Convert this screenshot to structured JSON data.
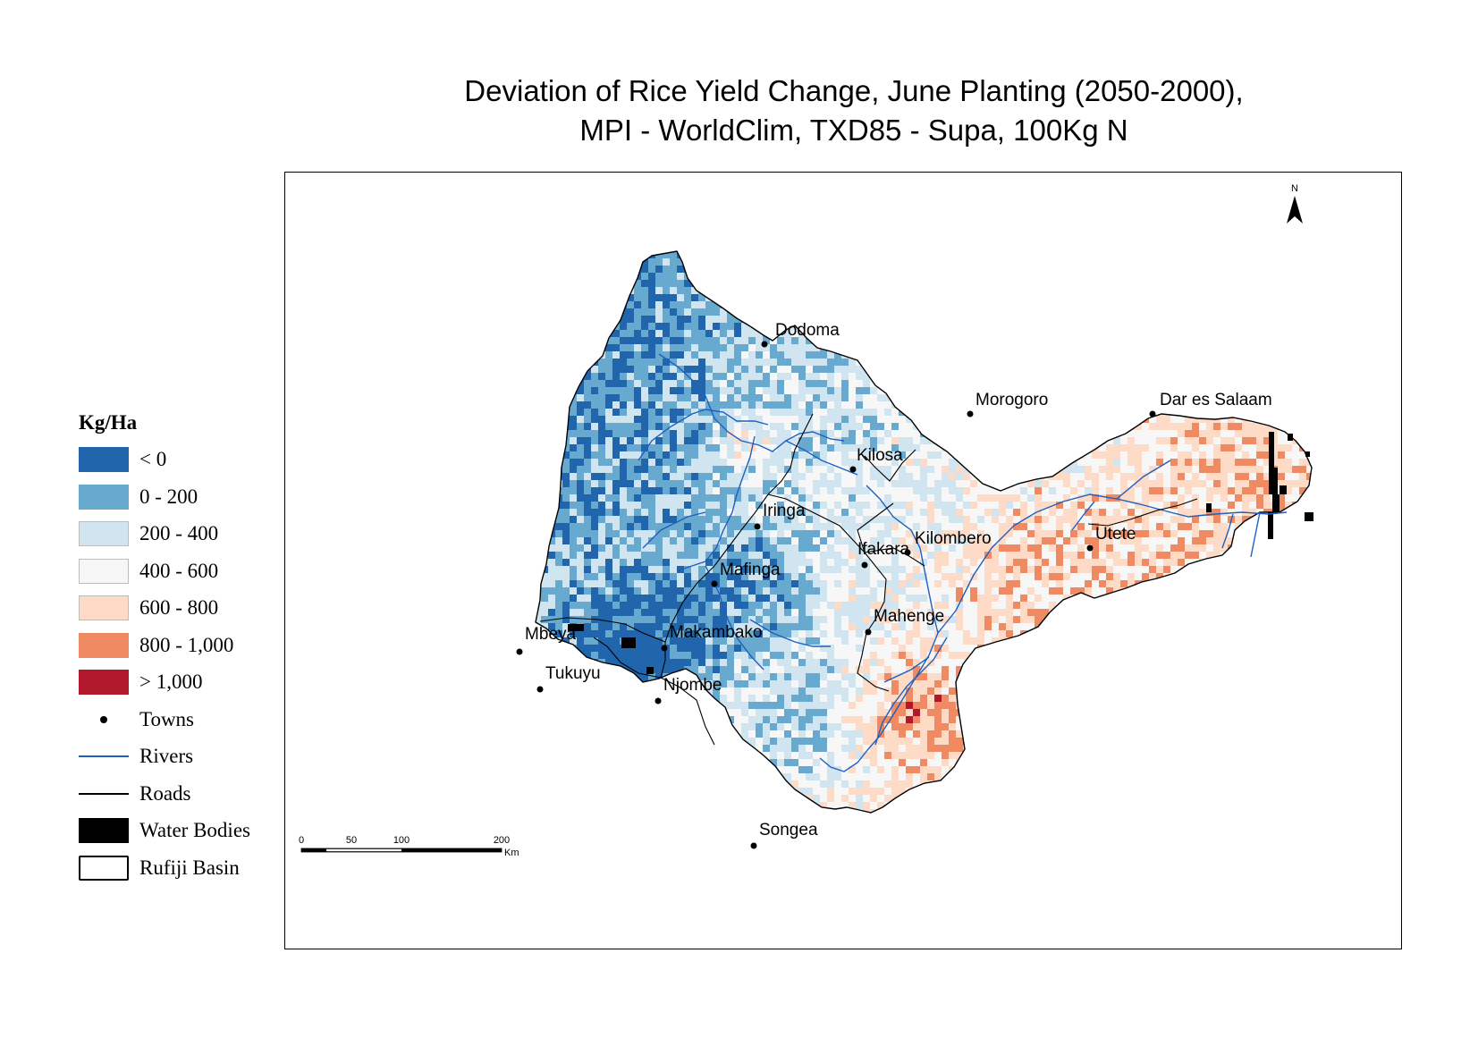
{
  "title": {
    "line1": "Deviation of Rice Yield Change, June Planting (2050-2000),",
    "line2": "MPI - WorldClim, TXD85 - Supa, 100Kg N"
  },
  "legend": {
    "title": "Kg/Ha",
    "items": [
      {
        "label": "< 0",
        "symbol": "swatch",
        "color": "#2166ac"
      },
      {
        "label": "0 - 200",
        "symbol": "swatch",
        "color": "#67a9cf"
      },
      {
        "label": "200 - 400",
        "symbol": "swatch",
        "color": "#d1e5f0"
      },
      {
        "label": "400 - 600",
        "symbol": "swatch",
        "color": "#f7f7f7"
      },
      {
        "label": "600 - 800",
        "symbol": "swatch",
        "color": "#fddbc7"
      },
      {
        "label": "800 - 1,000",
        "symbol": "swatch",
        "color": "#ef8a62"
      },
      {
        "label": "> 1,000",
        "symbol": "swatch",
        "color": "#b2182b"
      },
      {
        "label": "Towns",
        "symbol": "dot",
        "color": "#000000"
      },
      {
        "label": "Rivers",
        "symbol": "line",
        "color": "#1f5fbf"
      },
      {
        "label": "Roads",
        "symbol": "line",
        "color": "#000000"
      },
      {
        "label": "Water Bodies",
        "symbol": "swatch",
        "color": "#000000"
      },
      {
        "label": "Rufiji Basin",
        "symbol": "outline",
        "color": "#000000"
      }
    ]
  },
  "towns": [
    {
      "name": "Dodoma"
    },
    {
      "name": "Morogoro"
    },
    {
      "name": "Dar es Salaam"
    },
    {
      "name": "Kilosa"
    },
    {
      "name": "Iringa"
    },
    {
      "name": "Kilombero"
    },
    {
      "name": "Utete"
    },
    {
      "name": "Ifakara"
    },
    {
      "name": "Mafinga"
    },
    {
      "name": "Mahenge"
    },
    {
      "name": "Mbeya"
    },
    {
      "name": "Makambako"
    },
    {
      "name": "Tukuyu"
    },
    {
      "name": "Njombe"
    },
    {
      "name": "Songea"
    }
  ],
  "north_arrow": {
    "label": "N",
    "icon": "north-arrow-icon"
  },
  "scale_bar": {
    "ticks": [
      "0",
      "50",
      "100",
      "200"
    ],
    "unit": "Km"
  }
}
